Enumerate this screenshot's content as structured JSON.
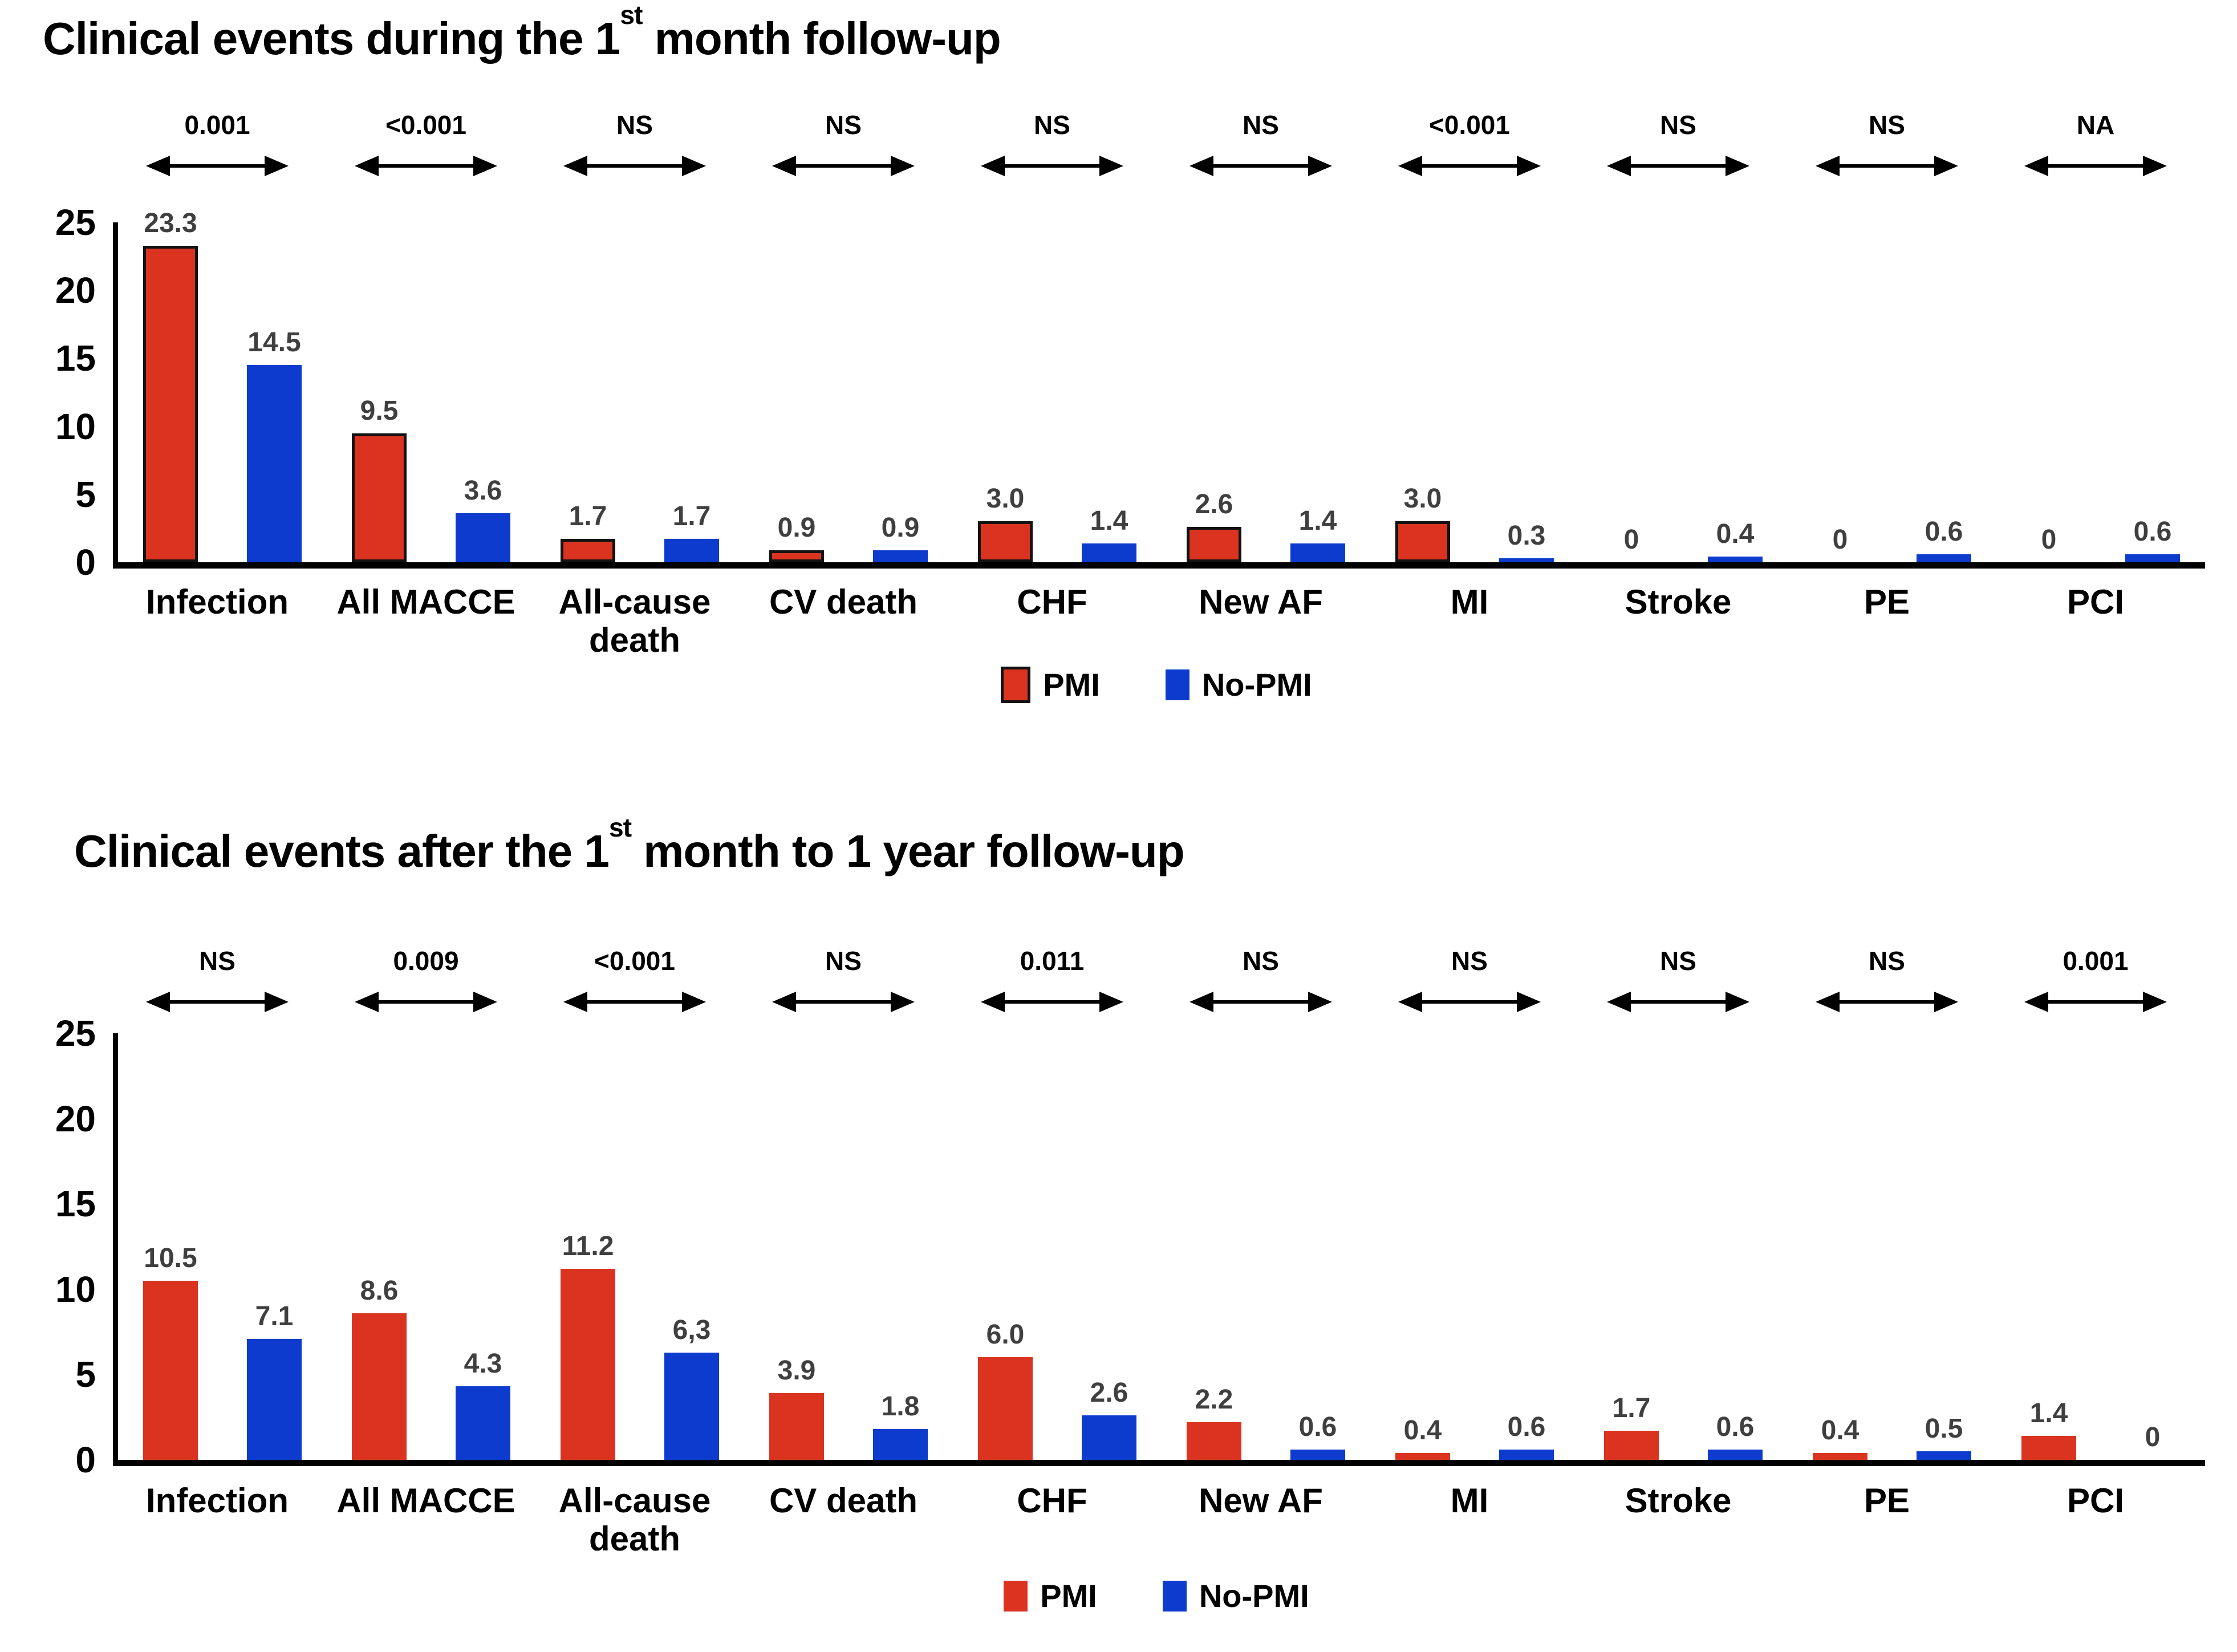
{
  "colors": {
    "pmi_red": "#da3420",
    "no_pmi_blue": "#0c3bcd",
    "bar_value_label": "#3f3f3f",
    "axis_black": "#000000"
  },
  "chart_data": [
    {
      "type": "bar",
      "title": {
        "prefix": "Clinical events during the 1",
        "sup": "st",
        "suffix": " month follow-up"
      },
      "xlabel": "",
      "ylabel": "",
      "ylim": [
        0,
        25
      ],
      "yticks": [
        25,
        20,
        15,
        10,
        5,
        0
      ],
      "grid": false,
      "legend_position": "bottom",
      "categories": [
        "Infection",
        "All MACCE",
        "All-cause death",
        "CV death",
        "CHF",
        "New AF",
        "MI",
        "Stroke",
        "PE",
        "PCI"
      ],
      "p_values": [
        "0.001",
        "<0.001",
        "NS",
        "NS",
        "NS",
        "NS",
        "<0.001",
        "NS",
        "NS",
        "NA"
      ],
      "series": [
        {
          "name": "PMI",
          "color": "#da3420",
          "outlined": true,
          "values": [
            23.3,
            9.5,
            1.7,
            0.9,
            3.0,
            2.6,
            3.0,
            0,
            0,
            0
          ],
          "labels": [
            "23.3",
            "9.5",
            "1.7",
            "0.9",
            "3.0",
            "2.6",
            "3.0",
            "0",
            "0",
            "0"
          ]
        },
        {
          "name": "No-PMI",
          "color": "#0c3bcd",
          "outlined": false,
          "values": [
            14.5,
            3.6,
            1.7,
            0.9,
            1.4,
            1.4,
            0.3,
            0.4,
            0.6,
            0.6
          ],
          "labels": [
            "14.5",
            "3.6",
            "1.7",
            "0.9",
            "1.4",
            "1.4",
            "0.3",
            "0.4",
            "0.6",
            "0.6"
          ]
        }
      ]
    },
    {
      "type": "bar",
      "title": {
        "prefix": "Clinical events after the 1",
        "sup": "st",
        "suffix": " month to 1 year follow-up"
      },
      "xlabel": "",
      "ylabel": "",
      "ylim": [
        0,
        25
      ],
      "yticks": [
        25,
        20,
        15,
        10,
        5,
        0
      ],
      "grid": false,
      "legend_position": "bottom",
      "categories": [
        "Infection",
        "All MACCE",
        "All-cause death",
        "CV death",
        "CHF",
        "New AF",
        "MI",
        "Stroke",
        "PE",
        "PCI"
      ],
      "p_values": [
        "NS",
        "0.009",
        "<0.001",
        "NS",
        "0.011",
        "NS",
        "NS",
        "NS",
        "NS",
        "0.001"
      ],
      "series": [
        {
          "name": "PMI",
          "color": "#da3420",
          "outlined": false,
          "values": [
            10.5,
            8.6,
            11.2,
            3.9,
            6.0,
            2.2,
            0.4,
            1.7,
            0.4,
            1.4
          ],
          "labels": [
            "10.5",
            "8.6",
            "11.2",
            "3.9",
            "6.0",
            "2.2",
            "0.4",
            "1.7",
            "0.4",
            "1.4"
          ]
        },
        {
          "name": "No-PMI",
          "color": "#0c3bcd",
          "outlined": false,
          "values": [
            7.1,
            4.3,
            6.3,
            1.8,
            2.6,
            0.6,
            0.6,
            0.6,
            0.5,
            0
          ],
          "labels": [
            "7.1",
            "4.3",
            "6,3",
            "1.8",
            "2.6",
            "0.6",
            "0.6",
            "0.6",
            "0.5",
            "0"
          ]
        }
      ]
    }
  ]
}
